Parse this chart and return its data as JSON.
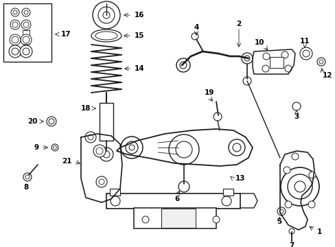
{
  "background_color": "#ffffff",
  "line_color": "#1a1a1a",
  "text_color": "#000000",
  "fig_width": 4.89,
  "fig_height": 3.6,
  "dpi": 100,
  "font_size": 7.5,
  "lw_main": 1.0,
  "lw_thick": 1.6,
  "lw_thin": 0.7
}
